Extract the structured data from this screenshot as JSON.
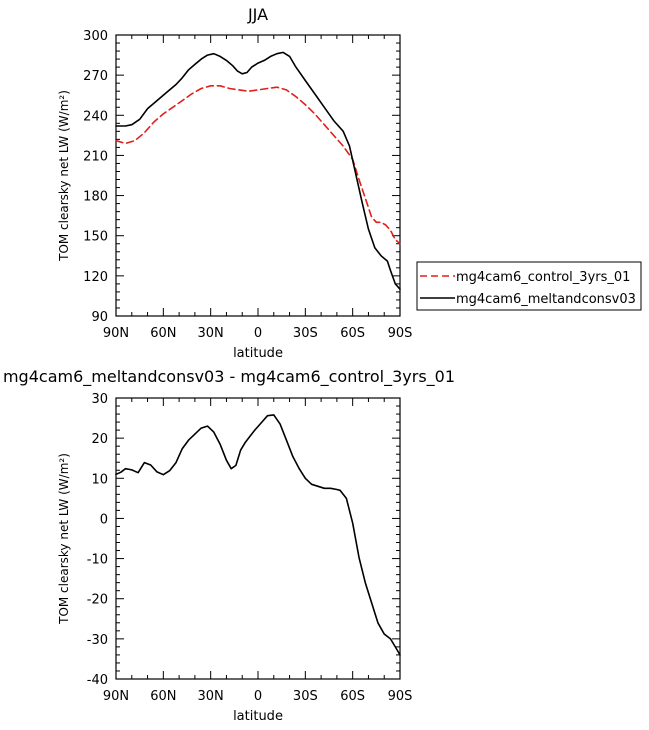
{
  "chart_data": [
    {
      "type": "line",
      "title": "JJA",
      "xlabel": "latitude",
      "ylabel": "TOM clearsky net LW (W/m²)",
      "xlim": [
        90,
        -90
      ],
      "ylim": [
        90,
        300
      ],
      "x_ticks": [
        {
          "v": 90,
          "label": "90N"
        },
        {
          "v": 60,
          "label": "60N"
        },
        {
          "v": 30,
          "label": "30N"
        },
        {
          "v": 0,
          "label": "0"
        },
        {
          "v": -30,
          "label": "30S"
        },
        {
          "v": -60,
          "label": "60S"
        },
        {
          "v": -90,
          "label": "90S"
        }
      ],
      "y_ticks": [
        90,
        120,
        150,
        180,
        210,
        240,
        270,
        300
      ],
      "grid": false,
      "legend_position": "right",
      "series": [
        {
          "name": "mg4cam6_control_3yrs_01",
          "color": "#e0201b",
          "dash": true,
          "points": [
            [
              90,
              221
            ],
            [
              84,
              219
            ],
            [
              78,
              221
            ],
            [
              72,
              227
            ],
            [
              66,
              235
            ],
            [
              60,
              241
            ],
            [
              54,
              246
            ],
            [
              48,
              251
            ],
            [
              42,
              256
            ],
            [
              36,
              260
            ],
            [
              30,
              262
            ],
            [
              24,
              262
            ],
            [
              18,
              260
            ],
            [
              12,
              259
            ],
            [
              6,
              258
            ],
            [
              0,
              259
            ],
            [
              -6,
              260
            ],
            [
              -12,
              261
            ],
            [
              -18,
              259
            ],
            [
              -24,
              254
            ],
            [
              -30,
              248
            ],
            [
              -36,
              241
            ],
            [
              -42,
              233
            ],
            [
              -48,
              225
            ],
            [
              -54,
              217
            ],
            [
              -60,
              207
            ],
            [
              -64,
              192
            ],
            [
              -68,
              178
            ],
            [
              -72,
              164
            ],
            [
              -75,
              160
            ],
            [
              -78,
              160
            ],
            [
              -81,
              158
            ],
            [
              -84,
              154
            ],
            [
              -87,
              147
            ],
            [
              -90,
              144
            ]
          ]
        },
        {
          "name": "mg4cam6_meltandconsv03",
          "color": "#000000",
          "dash": false,
          "points": [
            [
              90,
              232
            ],
            [
              84,
              232
            ],
            [
              80,
              233
            ],
            [
              75,
              237
            ],
            [
              70,
              245
            ],
            [
              64,
              251
            ],
            [
              58,
              257
            ],
            [
              52,
              263
            ],
            [
              48,
              268
            ],
            [
              44,
              274
            ],
            [
              40,
              278
            ],
            [
              36,
              282
            ],
            [
              32,
              285
            ],
            [
              28,
              286
            ],
            [
              24,
              284
            ],
            [
              20,
              281
            ],
            [
              16,
              277
            ],
            [
              13,
              273
            ],
            [
              10,
              271
            ],
            [
              7,
              272
            ],
            [
              4,
              276
            ],
            [
              0,
              279
            ],
            [
              -4,
              281
            ],
            [
              -8,
              284
            ],
            [
              -12,
              286
            ],
            [
              -16,
              287
            ],
            [
              -20,
              284
            ],
            [
              -24,
              276
            ],
            [
              -30,
              266
            ],
            [
              -36,
              256
            ],
            [
              -42,
              246
            ],
            [
              -48,
              236
            ],
            [
              -54,
              228
            ],
            [
              -58,
              217
            ],
            [
              -62,
              196
            ],
            [
              -66,
              175
            ],
            [
              -70,
              155
            ],
            [
              -74,
              141
            ],
            [
              -78,
              135
            ],
            [
              -82,
              131
            ],
            [
              -84,
              124
            ],
            [
              -87,
              114
            ],
            [
              -90,
              110
            ]
          ]
        }
      ]
    },
    {
      "type": "line",
      "title": "mg4cam6_meltandconsv03 - mg4cam6_control_3yrs_01",
      "xlabel": "latitude",
      "ylabel": "TOM clearsky net LW (W/m²)",
      "xlim": [
        90,
        -90
      ],
      "ylim": [
        -40,
        30
      ],
      "x_ticks": [
        {
          "v": 90,
          "label": "90N"
        },
        {
          "v": 60,
          "label": "60N"
        },
        {
          "v": 30,
          "label": "30N"
        },
        {
          "v": 0,
          "label": "0"
        },
        {
          "v": -30,
          "label": "30S"
        },
        {
          "v": -60,
          "label": "60S"
        },
        {
          "v": -90,
          "label": "90S"
        }
      ],
      "y_ticks": [
        -40,
        -30,
        -20,
        -10,
        0,
        10,
        20,
        30
      ],
      "grid": false,
      "series": [
        {
          "color": "#000000",
          "dash": false,
          "points": [
            [
              90,
              11
            ],
            [
              87,
              11.5
            ],
            [
              84,
              12.4
            ],
            [
              80,
              12.1
            ],
            [
              76,
              11.4
            ],
            [
              72,
              13.9
            ],
            [
              68,
              13.3
            ],
            [
              64,
              11.6
            ],
            [
              60,
              10.9
            ],
            [
              56,
              11.9
            ],
            [
              52,
              13.9
            ],
            [
              48,
              17.4
            ],
            [
              44,
              19.5
            ],
            [
              40,
              21
            ],
            [
              36,
              22.5
            ],
            [
              32,
              23
            ],
            [
              28,
              21.5
            ],
            [
              24,
              18.5
            ],
            [
              20,
              14.5
            ],
            [
              17,
              12.4
            ],
            [
              14,
              13.2
            ],
            [
              11,
              17
            ],
            [
              8,
              19
            ],
            [
              5,
              20.5
            ],
            [
              2,
              22
            ],
            [
              -2,
              23.8
            ],
            [
              -6,
              25.6
            ],
            [
              -10,
              25.8
            ],
            [
              -14,
              23.5
            ],
            [
              -18,
              19.5
            ],
            [
              -22,
              15.5
            ],
            [
              -26,
              12.5
            ],
            [
              -30,
              10
            ],
            [
              -34,
              8.5
            ],
            [
              -38,
              8
            ],
            [
              -42,
              7.5
            ],
            [
              -46,
              7.5
            ],
            [
              -50,
              7.2
            ],
            [
              -52,
              7
            ],
            [
              -56,
              5
            ],
            [
              -60,
              -1.2
            ],
            [
              -64,
              -9.7
            ],
            [
              -68,
              -16
            ],
            [
              -72,
              -21
            ],
            [
              -76,
              -26
            ],
            [
              -80,
              -28.8
            ],
            [
              -84,
              -30
            ],
            [
              -87,
              -32
            ],
            [
              -90,
              -34
            ]
          ]
        }
      ]
    }
  ]
}
